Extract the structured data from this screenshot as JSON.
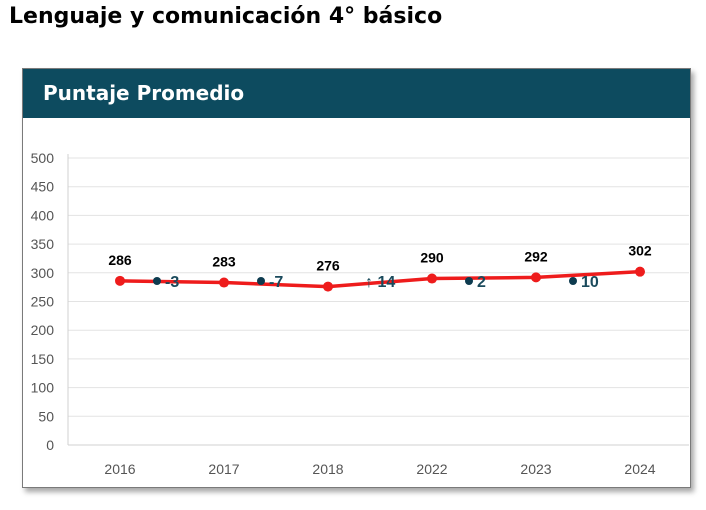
{
  "page": {
    "title": "Lenguaje y comunicación 4° básico"
  },
  "card": {
    "header": "Puntaje Promedio"
  },
  "chart_data": {
    "type": "line",
    "title": "Puntaje Promedio",
    "categories": [
      "2016",
      "2017",
      "2018",
      "2022",
      "2023",
      "2024"
    ],
    "series": [
      {
        "values": [
          286,
          283,
          276,
          290,
          292,
          302
        ]
      }
    ],
    "data_labels": [
      "286",
      "283",
      "276",
      "290",
      "292",
      "302"
    ],
    "changes": [
      {
        "marker": "dot",
        "text": "-3"
      },
      {
        "marker": "dot",
        "text": "-7"
      },
      {
        "marker": "arrow-up",
        "text": "↑ 14"
      },
      {
        "marker": "dot",
        "text": "2"
      },
      {
        "marker": "dot",
        "text": "10"
      }
    ],
    "yticks": [
      "0",
      "50",
      "100",
      "150",
      "200",
      "250",
      "300",
      "350",
      "400",
      "450",
      "500"
    ],
    "ylim": [
      0,
      500
    ],
    "grid": true,
    "colors": {
      "line": "#ee1c1c",
      "change_dot": "#0d3b4f",
      "change_text": "#1a4a5c",
      "grid": "#e3e3e3",
      "header": "#0d4b5f"
    }
  }
}
